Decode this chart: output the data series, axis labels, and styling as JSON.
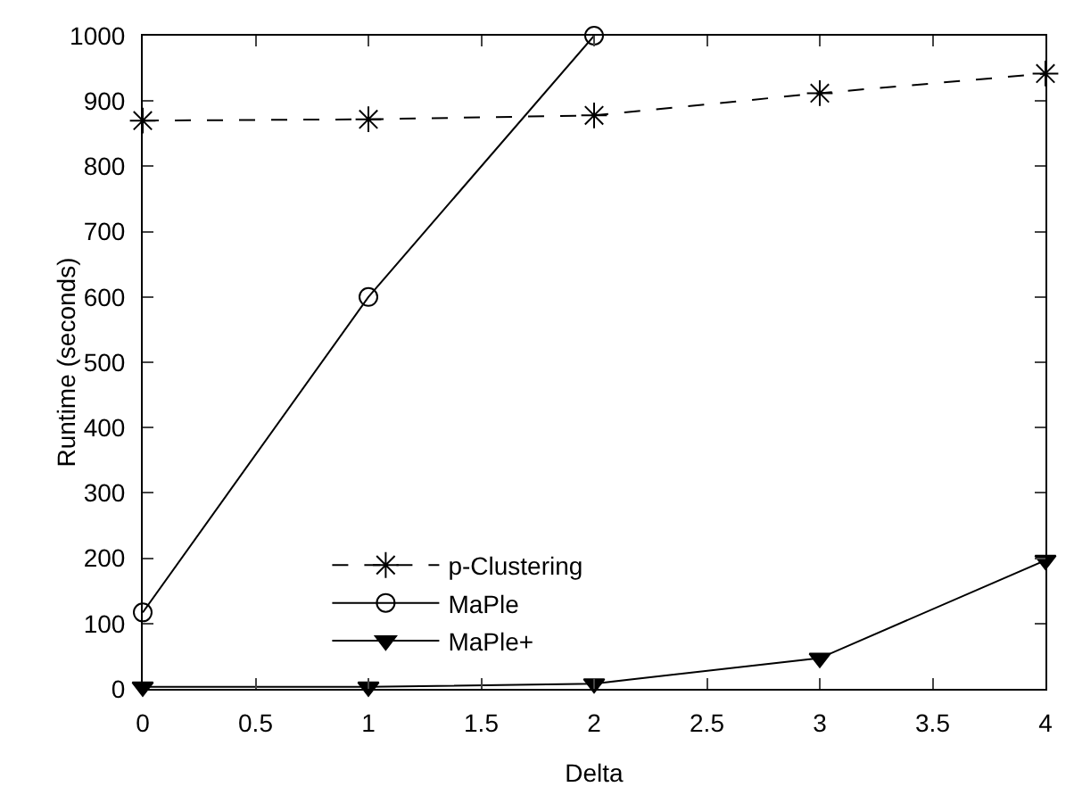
{
  "chart_data": {
    "type": "line",
    "xlabel": "Delta",
    "ylabel": "Runtime (seconds)",
    "xlim": [
      0,
      4
    ],
    "xticks": [
      0,
      0.5,
      1,
      1.5,
      2,
      2.5,
      3,
      3.5,
      4
    ],
    "ylim": [
      0,
      1000
    ],
    "yticks": [
      0,
      100,
      200,
      300,
      400,
      500,
      600,
      700,
      800,
      900,
      1000
    ],
    "grid": false,
    "legend": "bottom left",
    "series": [
      {
        "name": "p-Clustering",
        "color": "#000000",
        "x": [
          0,
          1,
          2,
          3,
          4
        ],
        "values": [
          870,
          872,
          878,
          912,
          942
        ],
        "marker": "cross",
        "line_style": "dashed"
      },
      {
        "name": "MaPle",
        "color": "#000000",
        "x": [
          0,
          1,
          2
        ],
        "values": [
          117,
          600,
          1000
        ],
        "marker": "circle",
        "line_style": "solid"
      },
      {
        "name": "MaPle+",
        "color": "#000000",
        "x": [
          0,
          1,
          2,
          3,
          4
        ],
        "values": [
          3,
          3,
          8,
          47,
          197
        ],
        "marker": "triangle",
        "line_style": "solid"
      }
    ]
  }
}
